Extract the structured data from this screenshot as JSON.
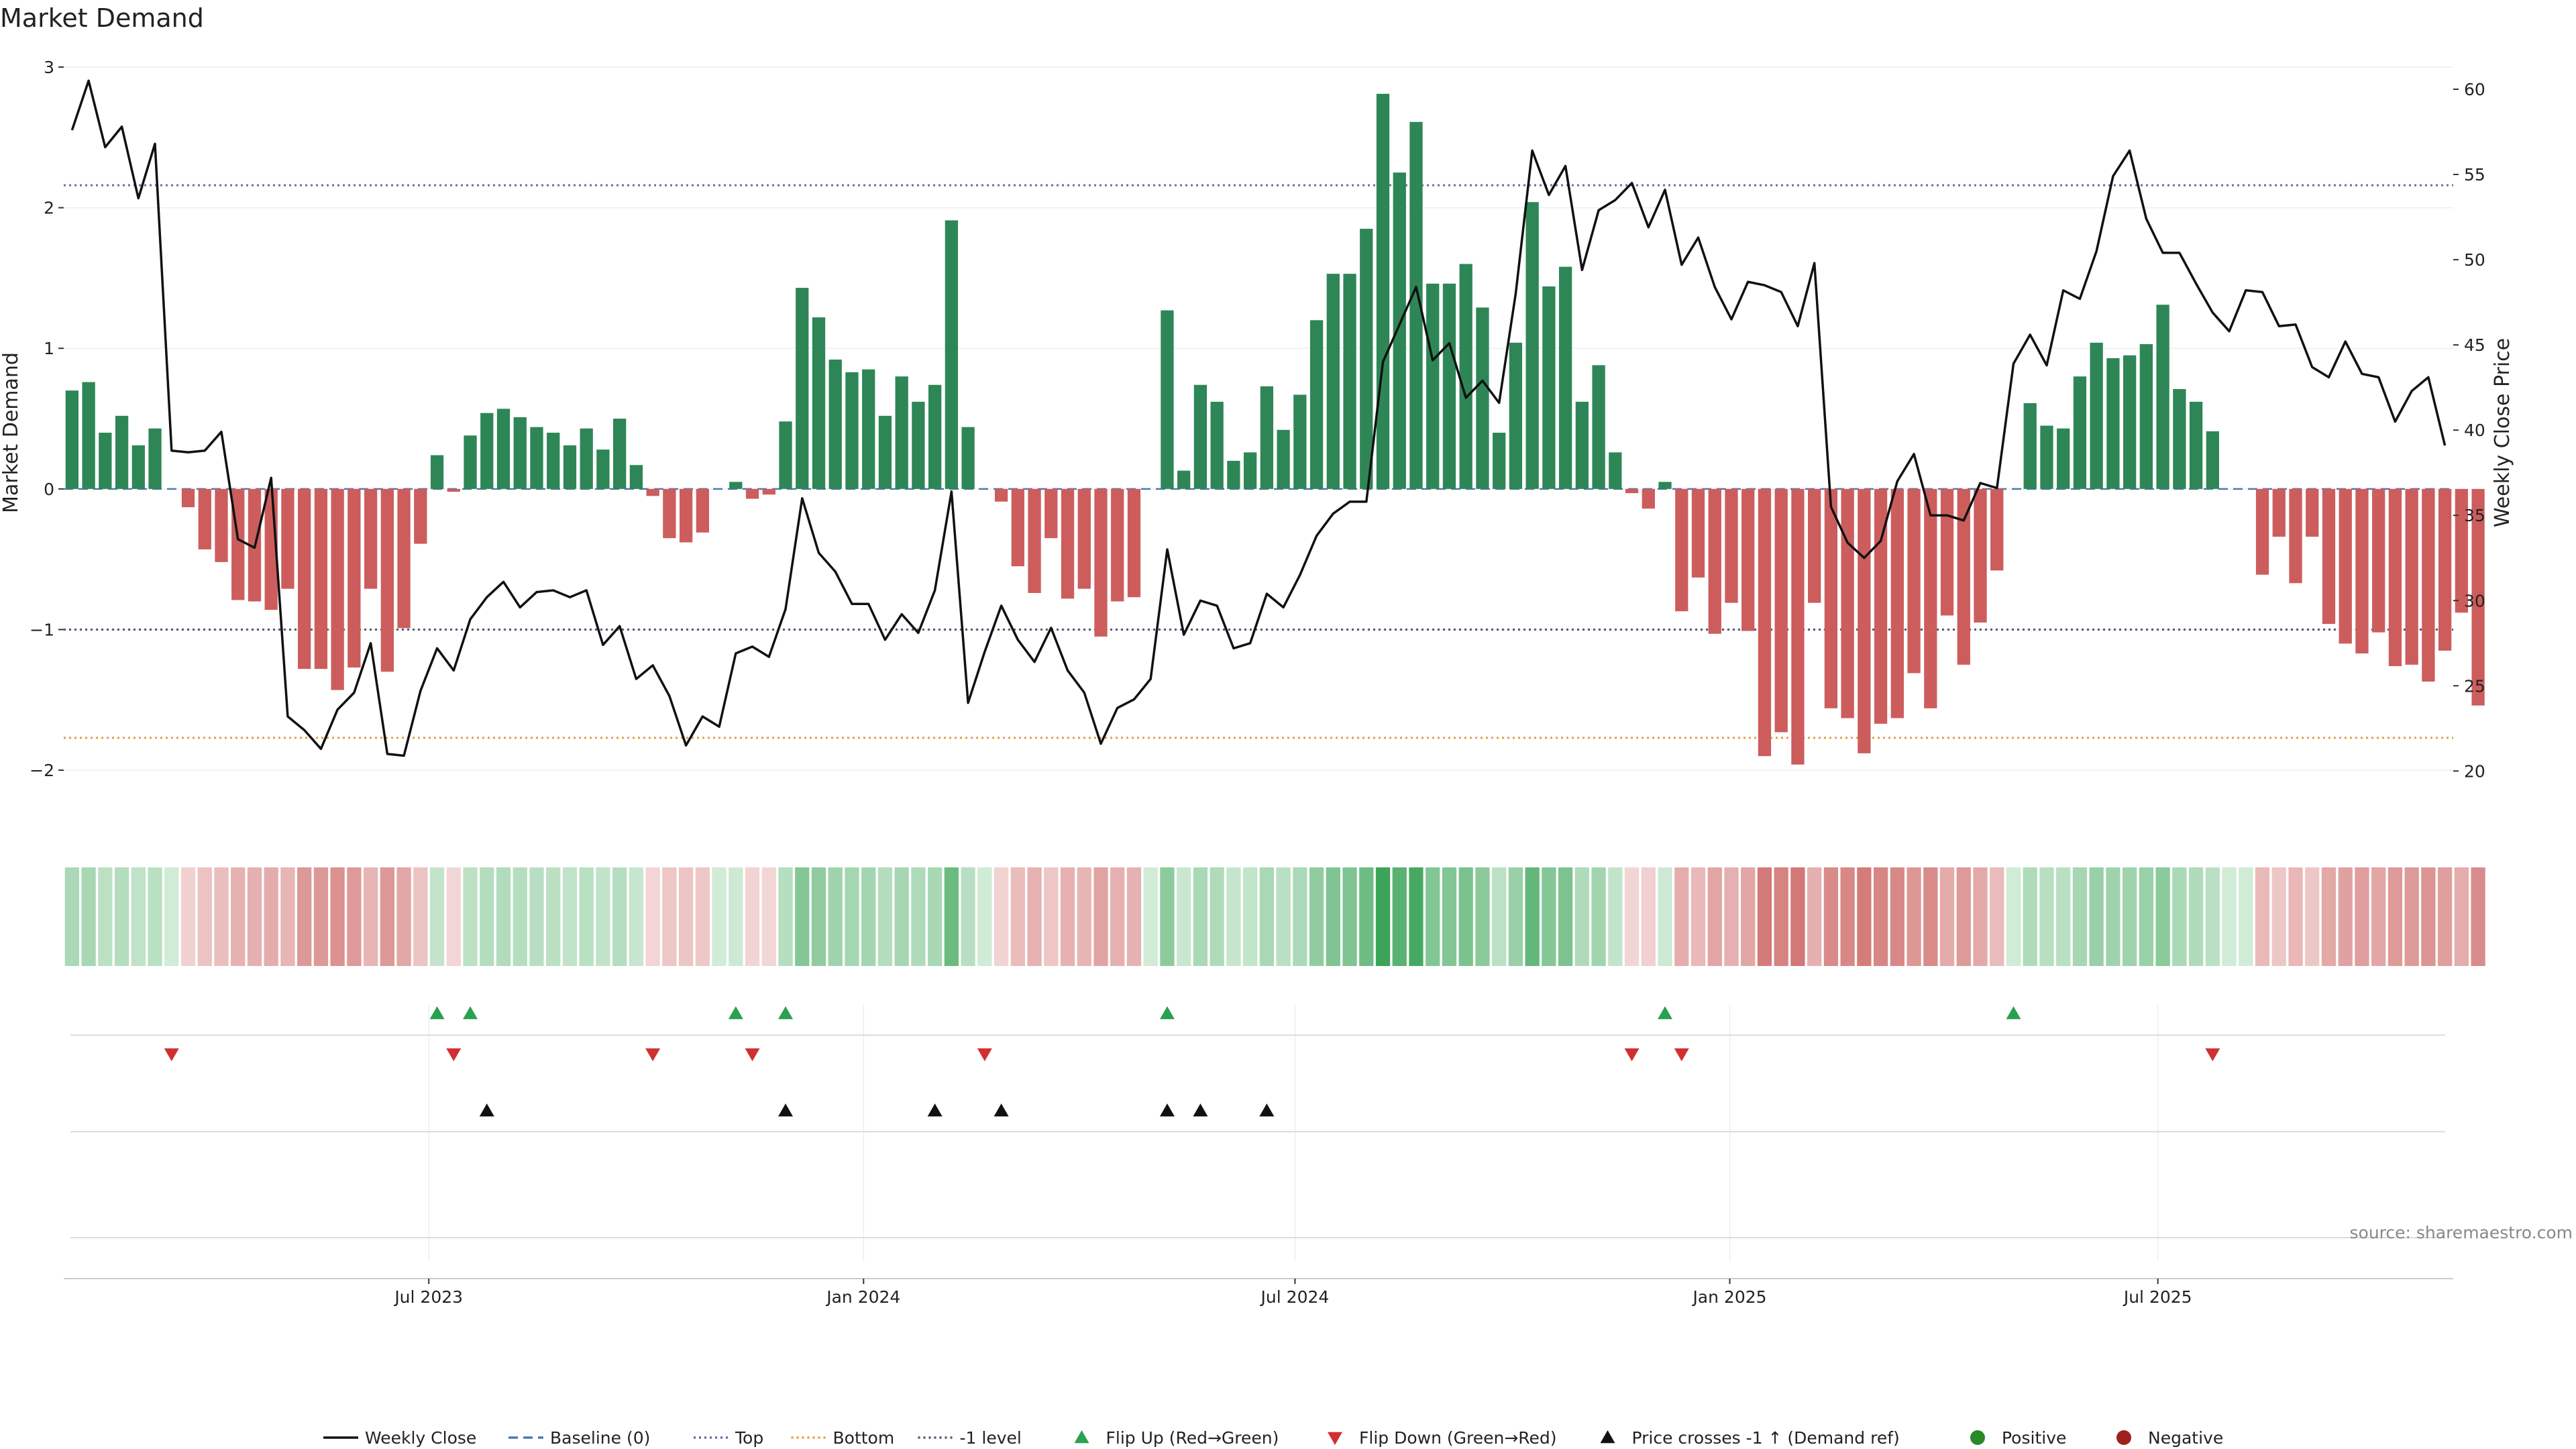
{
  "chart_data": {
    "type": "bar",
    "title": "Market Demand",
    "ylabel": "Market Demand",
    "y2label": "Weekly Close Price",
    "ylim": [
      -2.2,
      3.0
    ],
    "y2lim": [
      18.4,
      61.3
    ],
    "yticks": [
      3,
      2,
      1,
      0,
      -1,
      -2
    ],
    "ytick_labels": [
      "3",
      "2",
      "1",
      "0",
      "−1",
      "−2"
    ],
    "y2ticks": [
      60,
      55,
      50,
      45,
      40,
      35,
      30,
      25,
      20
    ],
    "reference_lines": {
      "top": 2.16,
      "bottom": -1.77,
      "minus_one": -1.0,
      "baseline": 0
    },
    "x_index_range": [
      -0.5,
      143.5
    ],
    "x_ticks": [
      {
        "label": "Jul 2023",
        "index": 21.5
      },
      {
        "label": "Jan 2024",
        "index": 47.7
      },
      {
        "label": "Jul 2024",
        "index": 73.7
      },
      {
        "label": "Jan 2025",
        "index": 99.9
      },
      {
        "label": "Jul 2025",
        "index": 125.7
      }
    ],
    "series": [
      {
        "name": "Market Demand",
        "values": [
          0.7,
          0.76,
          0.4,
          0.52,
          0.31,
          0.43,
          0,
          -0.13,
          -0.43,
          -0.52,
          -0.79,
          -0.8,
          -0.86,
          -0.71,
          -1.28,
          -1.28,
          -1.43,
          -1.27,
          -0.71,
          -1.3,
          -0.99,
          -0.39,
          0.24,
          -0.02,
          0.38,
          0.54,
          0.57,
          0.51,
          0.44,
          0.4,
          0.31,
          0.43,
          0.28,
          0.5,
          0.17,
          -0.05,
          -0.35,
          -0.38,
          -0.31,
          0,
          0.05,
          -0.07,
          -0.04,
          0.48,
          1.43,
          1.22,
          0.92,
          0.83,
          0.85,
          0.52,
          0.8,
          0.62,
          0.74,
          1.91,
          0.44,
          0,
          -0.09,
          -0.55,
          -0.74,
          -0.35,
          -0.78,
          -0.71,
          -1.05,
          -0.8,
          -0.77,
          0,
          1.27,
          0.13,
          0.74,
          0.62,
          0.2,
          0.26,
          0.73,
          0.42,
          0.67,
          1.2,
          1.53,
          1.53,
          1.85,
          2.81,
          2.25,
          2.61,
          1.46,
          1.46,
          1.6,
          1.29,
          0.4,
          1.04,
          2.04,
          1.44,
          1.58,
          0.62,
          0.88,
          0.26,
          -0.03,
          -0.14,
          0.05,
          -0.87,
          -0.63,
          -1.03,
          -0.81,
          -1.01,
          -1.9,
          -1.73,
          -1.96,
          -0.81,
          -1.56,
          -1.63,
          -1.88,
          -1.67,
          -1.63,
          -1.31,
          -1.56,
          -0.9,
          -1.25,
          -0.95,
          -0.58,
          0,
          0.61,
          0.45,
          0.43,
          0.8,
          1.04,
          0.93,
          0.95,
          1.03,
          1.31,
          0.71,
          0.62,
          0.41,
          0,
          0,
          -0.61,
          -0.34,
          -0.67,
          -0.34,
          -0.96,
          -1.1,
          -1.17,
          -1.02,
          -1.26,
          -1.25,
          -1.37,
          -1.15,
          -0.88,
          -1.54
        ]
      },
      {
        "name": "Weekly Close",
        "axis": "right",
        "values": [
          57.6,
          60.5,
          56.6,
          57.8,
          53.6,
          56.8,
          38.8,
          38.7,
          38.8,
          39.9,
          33.6,
          33.1,
          37.2,
          23.2,
          22.4,
          21.3,
          23.6,
          24.6,
          27.5,
          21.0,
          20.9,
          24.7,
          27.2,
          25.9,
          28.9,
          30.2,
          31.1,
          29.6,
          30.5,
          30.6,
          30.2,
          30.6,
          27.4,
          28.5,
          25.4,
          26.2,
          24.4,
          21.5,
          23.2,
          22.6,
          26.9,
          27.3,
          26.7,
          29.5,
          36.0,
          32.8,
          31.7,
          29.8,
          29.8,
          27.7,
          29.2,
          28.1,
          30.6,
          36.4,
          24.0,
          27.0,
          29.7,
          27.7,
          26.4,
          28.4,
          25.9,
          24.6,
          21.6,
          23.7,
          24.2,
          25.4,
          33.0,
          28.0,
          30.0,
          29.7,
          27.2,
          27.5,
          30.4,
          29.6,
          31.5,
          33.8,
          35.1,
          35.8,
          35.8,
          44.0,
          46.2,
          48.4,
          44.1,
          45.1,
          41.9,
          42.9,
          41.6,
          48.0,
          56.4,
          53.8,
          55.5,
          49.4,
          52.9,
          53.5,
          54.5,
          51.9,
          54.1,
          49.7,
          51.3,
          48.4,
          46.5,
          48.7,
          48.5,
          48.1,
          46.1,
          49.8,
          35.5,
          33.4,
          32.5,
          33.5,
          37.0,
          38.6,
          35.0,
          35.0,
          34.7,
          36.9,
          36.6,
          43.9,
          45.6,
          43.8,
          48.2,
          47.7,
          50.5,
          54.9,
          56.4,
          52.4,
          50.4,
          50.4,
          48.6,
          46.9,
          45.8,
          48.2,
          48.1,
          46.1,
          46.2,
          43.7,
          43.1,
          45.2,
          43.3,
          43.1,
          40.5,
          42.3,
          43.1,
          39.1
        ]
      }
    ],
    "flip_up_indices": [
      22,
      24,
      40,
      43,
      66,
      96,
      117
    ],
    "flip_down_indices": [
      6,
      23,
      35,
      41,
      55,
      94,
      97,
      129
    ],
    "price_cross_indices": [
      25,
      43,
      52,
      56,
      66,
      68,
      72
    ],
    "legend": [
      {
        "label": "Weekly Close",
        "kind": "line",
        "color": "#111111",
        "dash": "none"
      },
      {
        "label": "Baseline (0)",
        "kind": "line",
        "color": "#4a7cb0",
        "dash": "14,8"
      },
      {
        "label": "Top",
        "kind": "line",
        "color": "#6a6aa8",
        "dash": "3,5"
      },
      {
        "label": "Bottom",
        "kind": "line",
        "color": "#e0a040",
        "dash": "3,5"
      },
      {
        "label": "-1 level",
        "kind": "line",
        "color": "#555577",
        "dash": "3,5"
      },
      {
        "label": "Flip Up (Red→Green)",
        "kind": "tri-up",
        "color": "#2aa050"
      },
      {
        "label": "Flip Down (Green→Red)",
        "kind": "tri-down",
        "color": "#d03030"
      },
      {
        "label": "Price crosses -1 ↑ (Demand ref)",
        "kind": "tri-up",
        "color": "#111111"
      },
      {
        "label": "Positive",
        "kind": "dot",
        "color": "#2a8a2a"
      },
      {
        "label": "Negative",
        "kind": "dot",
        "color": "#a02020"
      }
    ],
    "source": "source: sharemaestro.com"
  },
  "colors": {
    "positive_bar": "#2e8657",
    "negative_bar": "#cd5d5d",
    "price_line": "#111111",
    "baseline": "#4a7cb0",
    "top_line": "#6a6aa8",
    "bottom_line": "#e0a040",
    "minus_one_line": "#555577",
    "flip_up": "#2aa050",
    "flip_down": "#d03030",
    "price_cross": "#111111"
  }
}
